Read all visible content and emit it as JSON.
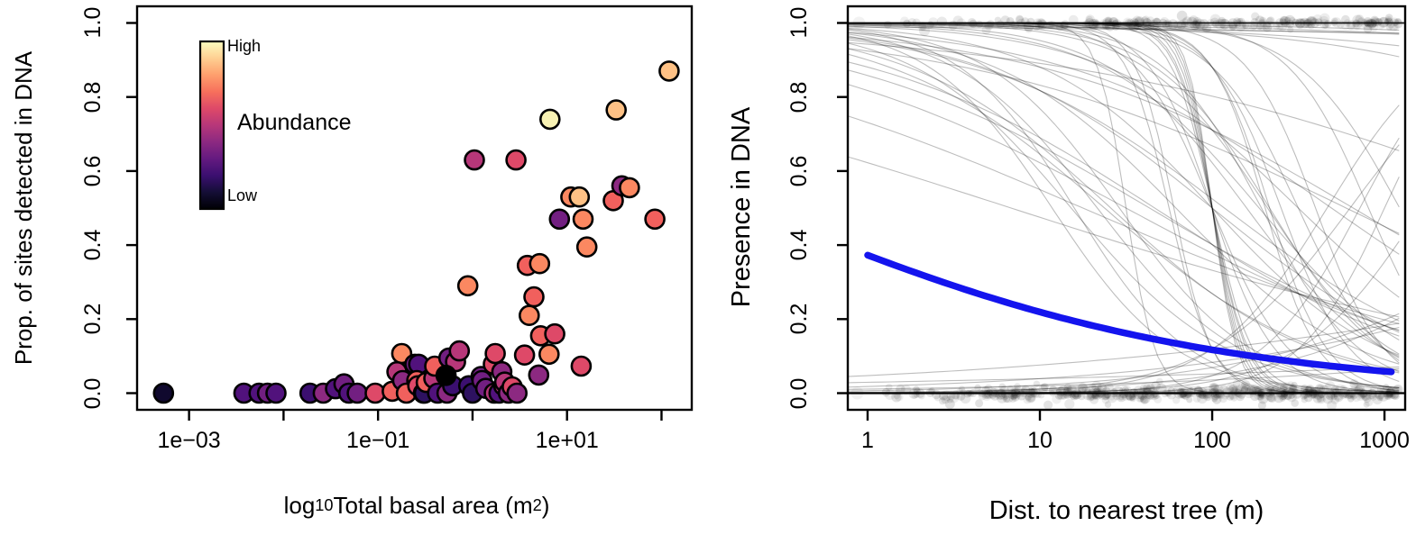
{
  "page": {
    "background": "#ffffff"
  },
  "chart_data": [
    {
      "type": "scatter",
      "panel": "left",
      "ylabel": "Prop. of sites detected in DNA",
      "xlabel": {
        "pre": "log",
        "sub": "10",
        "mid": " Total basal area (m",
        "sup": "2",
        "post": ")"
      },
      "xscale": "log10",
      "xlim_log": [
        -3.55,
        2.32
      ],
      "ylim": [
        -0.045,
        1.045
      ],
      "x_ticks": [
        {
          "u": -3,
          "label": "1e−03"
        },
        {
          "u": -2,
          "label": ""
        },
        {
          "u": -1,
          "label": "1e−01"
        },
        {
          "u": 0,
          "label": ""
        },
        {
          "u": 1,
          "label": "1e+01"
        },
        {
          "u": 2,
          "label": ""
        }
      ],
      "y_ticks": [
        {
          "v": 0.0,
          "label": "0.0"
        },
        {
          "v": 0.2,
          "label": "0.2"
        },
        {
          "v": 0.4,
          "label": "0.4"
        },
        {
          "v": 0.6,
          "label": "0.6"
        },
        {
          "v": 0.8,
          "label": "0.8"
        },
        {
          "v": 1.0,
          "label": "1.0"
        }
      ],
      "legend": {
        "title": "Abundance",
        "high_label": "High",
        "low_label": "Low",
        "colormap": "magma",
        "stops": [
          "#fcfdbf",
          "#fecf92",
          "#fe9f6d",
          "#f7705c",
          "#de4968",
          "#b73779",
          "#8c2981",
          "#641a80",
          "#3b0f70",
          "#140e36",
          "#000004"
        ]
      },
      "palette": {
        "black": "#000000",
        "nearblack": "#10092e",
        "indigo": "#2d1160",
        "indigo2": "#3b0f70",
        "purple1": "#51127c",
        "purple2": "#721f81",
        "magenta1": "#8c2981",
        "magenta2": "#b73779",
        "pink": "#de4968",
        "salmon": "#f1605d",
        "orange": "#fb8861",
        "lightorange": "#fec185",
        "paleyellow": "#f8f2b4"
      },
      "point_style": {
        "radius": 10.5,
        "stroke": "#000000",
        "stroke_width": 2.6
      },
      "points": [
        [
          -3.27,
          0.0,
          "nearblack"
        ],
        [
          -2.42,
          0.0,
          "purple1"
        ],
        [
          -2.26,
          0.0,
          "purple1"
        ],
        [
          -2.17,
          0.0,
          "purple2"
        ],
        [
          -2.08,
          0.0,
          "purple1"
        ],
        [
          -1.72,
          0.0,
          "indigo2"
        ],
        [
          -1.58,
          0.0,
          "magenta1"
        ],
        [
          -1.45,
          0.012,
          "purple1"
        ],
        [
          -1.36,
          0.025,
          "purple2"
        ],
        [
          -1.31,
          0.0,
          "purple1"
        ],
        [
          -1.22,
          0.0,
          "purple2"
        ],
        [
          -1.03,
          0.0,
          "pink"
        ],
        [
          -0.85,
          0.005,
          "salmon"
        ],
        [
          -0.75,
          0.107,
          "orange"
        ],
        [
          -0.8,
          0.058,
          "magenta2"
        ],
        [
          -0.74,
          0.034,
          "magenta1"
        ],
        [
          -0.7,
          0.0,
          "salmon"
        ],
        [
          -0.61,
          0.078,
          "purple2"
        ],
        [
          -0.57,
          0.078,
          "purple1"
        ],
        [
          -0.59,
          0.034,
          "salmon"
        ],
        [
          -0.58,
          0.02,
          "pink"
        ],
        [
          -0.52,
          0.0,
          "indigo2"
        ],
        [
          -0.51,
          0.0,
          "indigo"
        ],
        [
          -0.49,
          0.029,
          "salmon"
        ],
        [
          -0.41,
          0.04,
          "magenta2"
        ],
        [
          -0.4,
          0.073,
          "salmon"
        ],
        [
          -0.37,
          0.0,
          "purple1"
        ],
        [
          -0.25,
          0.095,
          "purple2"
        ],
        [
          -0.27,
          0.0,
          "magenta1"
        ],
        [
          -0.21,
          0.02,
          "indigo2"
        ],
        [
          -0.18,
          0.085,
          "magenta2"
        ],
        [
          -0.14,
          0.114,
          "magenta2"
        ],
        [
          -0.28,
          0.048,
          "black"
        ],
        [
          -0.05,
          0.29,
          "orange"
        ],
        [
          -0.04,
          0.02,
          "indigo2"
        ],
        [
          0.0,
          0.0,
          "indigo"
        ],
        [
          0.09,
          0.045,
          "purple2"
        ],
        [
          0.1,
          0.034,
          "purple2"
        ],
        [
          0.14,
          0.013,
          "purple2"
        ],
        [
          0.22,
          0.078,
          "pink"
        ],
        [
          0.23,
          0.0,
          "magenta2"
        ],
        [
          0.24,
          0.107,
          "pink"
        ],
        [
          0.28,
          0.0,
          "purple1"
        ],
        [
          0.31,
          0.058,
          "magenta1"
        ],
        [
          0.33,
          0.02,
          "magenta2"
        ],
        [
          0.34,
          0.03,
          "magenta2"
        ],
        [
          0.38,
          0.0,
          "magenta1"
        ],
        [
          0.42,
          0.017,
          "pink"
        ],
        [
          0.47,
          0.0,
          "magenta1"
        ],
        [
          0.55,
          0.103,
          "pink"
        ],
        [
          0.02,
          0.63,
          "magenta2"
        ],
        [
          0.46,
          0.63,
          "pink"
        ],
        [
          0.58,
          0.345,
          "salmon"
        ],
        [
          0.71,
          0.35,
          "orange"
        ],
        [
          0.65,
          0.26,
          "salmon"
        ],
        [
          0.6,
          0.21,
          "orange"
        ],
        [
          0.72,
          0.155,
          "salmon"
        ],
        [
          0.87,
          0.16,
          "pink"
        ],
        [
          0.81,
          0.105,
          "orange"
        ],
        [
          0.7,
          0.049,
          "magenta1"
        ],
        [
          1.15,
          0.073,
          "pink"
        ],
        [
          0.82,
          0.74,
          "paleyellow"
        ],
        [
          0.92,
          0.47,
          "purple2"
        ],
        [
          1.04,
          0.53,
          "orange"
        ],
        [
          1.13,
          0.53,
          "lightorange"
        ],
        [
          1.17,
          0.47,
          "orange"
        ],
        [
          1.21,
          0.395,
          "orange"
        ],
        [
          1.49,
          0.52,
          "salmon"
        ],
        [
          1.58,
          0.56,
          "magenta1"
        ],
        [
          1.66,
          0.555,
          "orange"
        ],
        [
          1.93,
          0.47,
          "salmon"
        ],
        [
          1.52,
          0.765,
          "lightorange"
        ],
        [
          2.08,
          0.87,
          "lightorange"
        ]
      ]
    },
    {
      "type": "line",
      "panel": "right",
      "ylabel": "Presence in DNA",
      "xlabel": {
        "pre": "Dist. to nearest tree (m)",
        "sub": "",
        "mid": "",
        "sup": "",
        "post": ""
      },
      "xscale": "log10",
      "xlim_log": [
        -0.115,
        3.12
      ],
      "ylim": [
        -0.045,
        1.045
      ],
      "x_ticks": [
        {
          "u": 0,
          "label": "1"
        },
        {
          "u": 1,
          "label": "10"
        },
        {
          "u": 2,
          "label": "100"
        },
        {
          "u": 3,
          "label": "1000"
        }
      ],
      "y_ticks": [
        {
          "v": 0.0,
          "label": "0.0"
        },
        {
          "v": 0.2,
          "label": "0.2"
        },
        {
          "v": 0.4,
          "label": "0.4"
        },
        {
          "v": 0.6,
          "label": "0.6"
        },
        {
          "v": 0.8,
          "label": "0.8"
        },
        {
          "v": 1.0,
          "label": "1.0"
        }
      ],
      "blue_curve": {
        "color": "#1414ee",
        "width": 7.5,
        "logistic_a": -0.52,
        "logistic_b": -0.75,
        "values_at_ticks": {
          "1": 0.38,
          "10": 0.22,
          "100": 0.12,
          "1000": 0.06
        }
      },
      "flat_lines": [
        {
          "y": 1.0,
          "width": 1.8,
          "opacity": 0.9
        },
        {
          "y": 0.0,
          "width": 2.2,
          "opacity": 1.0
        }
      ],
      "gray_curves": {
        "color": "#000000",
        "opacity": 0.26,
        "width": 1.1,
        "logistic_params": [
          [
            8,
            -3.5
          ],
          [
            10,
            -4
          ],
          [
            12,
            -5
          ],
          [
            14,
            -6
          ],
          [
            7,
            -3
          ],
          [
            9,
            -4.5
          ],
          [
            11,
            -5.5
          ],
          [
            13,
            -5
          ],
          [
            6.5,
            -2.8
          ],
          [
            15,
            -6.5
          ],
          [
            10.5,
            -3.4
          ],
          [
            12.5,
            -4.3
          ],
          [
            16,
            -9
          ],
          [
            20,
            -10
          ],
          [
            18,
            -12
          ],
          [
            24,
            -12
          ],
          [
            14,
            -8
          ],
          [
            22,
            -11
          ],
          [
            26,
            -13
          ],
          [
            19,
            -9.5
          ],
          [
            28,
            -14
          ],
          [
            17,
            -8.5
          ],
          [
            2,
            -1.2
          ],
          [
            1.5,
            -1
          ],
          [
            3,
            -1.5
          ],
          [
            2.5,
            -0.9
          ],
          [
            4,
            -2
          ],
          [
            3.5,
            -1.3
          ],
          [
            5,
            -2.2
          ],
          [
            1,
            -0.8
          ],
          [
            2.2,
            -1.6
          ],
          [
            4.5,
            -1.8
          ],
          [
            0.5,
            -0.6
          ],
          [
            1.8,
            -1.1
          ],
          [
            3.2,
            -2.4
          ],
          [
            2.8,
            -0.7
          ],
          [
            5.5,
            -2.5
          ],
          [
            3,
            -2.8
          ],
          [
            2.6,
            -2.2
          ],
          [
            3.4,
            -1.9
          ],
          [
            2.9,
            -1.4
          ],
          [
            3.8,
            -2.6
          ],
          [
            3.1,
            -1.1
          ],
          [
            2.4,
            -1.7
          ],
          [
            3.6,
            -3
          ],
          [
            -3,
            0.5
          ],
          [
            -4,
            0.8
          ],
          [
            -5,
            1.2
          ],
          [
            -3.5,
            0.3
          ],
          [
            -6,
            1.5
          ],
          [
            -4.5,
            0.6
          ],
          [
            -8,
            3
          ],
          [
            -10,
            3.5
          ],
          [
            -7,
            2.5
          ],
          [
            -12,
            4
          ],
          [
            -9,
            2.8
          ],
          [
            5,
            -0.5
          ],
          [
            6,
            -0.8
          ],
          [
            4.5,
            -0.3
          ],
          [
            7,
            -1
          ],
          [
            6,
            -1.2
          ],
          [
            5.5,
            -0.9
          ]
        ]
      },
      "jitter_points": {
        "color": "#000000",
        "seed": 1337,
        "top_band": {
          "count": 240,
          "y_center": 1.0,
          "y_spread": 0.013,
          "u_min": 0.05,
          "u_max": 3.08
        },
        "bottom_band": {
          "count": 520,
          "y_center": 0.0,
          "y_spread": 0.02,
          "u_min": 0.1,
          "u_max": 3.08
        },
        "alpha_range": [
          0.06,
          0.13
        ],
        "radius_range": [
          3.5,
          6.0
        ]
      },
      "edge_points": [
        {
          "u": -0.05,
          "y": 1.0
        },
        {
          "u": -0.06,
          "y": 0.0
        }
      ]
    }
  ]
}
